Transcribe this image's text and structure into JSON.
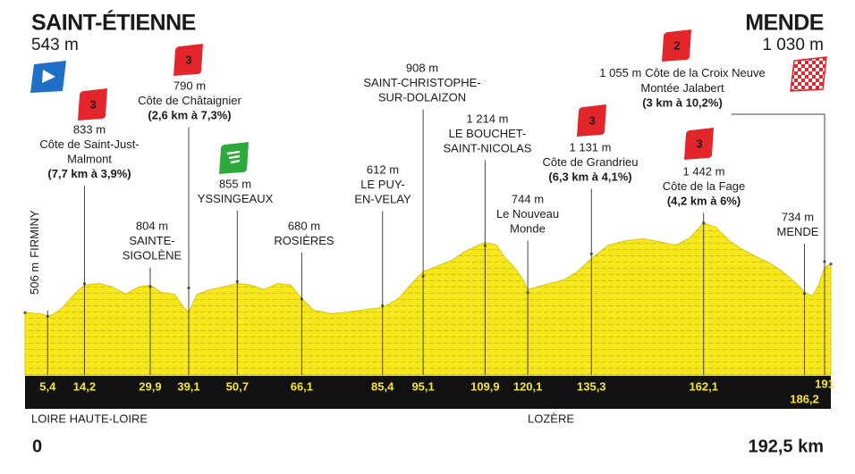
{
  "chart_data": {
    "type": "profile",
    "start": {
      "name": "SAINT-ÉTIENNE",
      "elevation": {
        "value": 543,
        "label": "543 m"
      },
      "km": {
        "value": 0,
        "label": "0"
      }
    },
    "finish": {
      "name": "MENDE",
      "elevation": {
        "value": 1030,
        "label": "1 030 m"
      },
      "km": {
        "value": 192.5,
        "label": "192,5 km"
      }
    },
    "regions": [
      "LOIRE HAUTE-LOIRE",
      "LOZÈRE"
    ],
    "xlim": [
      0,
      192.5
    ],
    "ylim": [
      -80,
      1600
    ],
    "profile": {
      "color": "#f7e81e",
      "x": [
        0,
        3.7,
        5.4,
        6.9,
        9.0,
        12.2,
        14.2,
        17.6,
        20.8,
        24.0,
        27.2,
        29.9,
        32.5,
        35.7,
        37.9,
        39.1,
        41.1,
        44.3,
        47.5,
        50.7,
        53.9,
        57.1,
        60.3,
        63.5,
        66.1,
        68.9,
        73.1,
        77.4,
        81.7,
        85.4,
        89.2,
        92.4,
        95.1,
        98.8,
        102.0,
        105.2,
        108.4,
        109.9,
        112.6,
        114.8,
        116.9,
        119.1,
        120.1,
        122.3,
        125.5,
        128.7,
        131.9,
        135.3,
        139.4,
        143.7,
        148.0,
        152.2,
        155.4,
        158.6,
        162.1,
        165.0,
        168.2,
        171.4,
        174.6,
        177.8,
        181.0,
        184.3,
        186.2,
        188.1,
        189.6,
        191.0,
        192.5
      ],
      "values": [
        543,
        533,
        506,
        530,
        595,
        747,
        819,
        836,
        801,
        729,
        801,
        819,
        747,
        729,
        595,
        551,
        729,
        774,
        801,
        836,
        819,
        774,
        836,
        819,
        685,
        569,
        533,
        551,
        577,
        595,
        685,
        836,
        953,
        1015,
        1069,
        1158,
        1220,
        1247,
        1220,
        1086,
        997,
        863,
        774,
        801,
        836,
        872,
        953,
        1086,
        1220,
        1265,
        1283,
        1247,
        1220,
        1283,
        1442,
        1399,
        1265,
        1176,
        1104,
        1042,
        953,
        836,
        747,
        711,
        819,
        997,
        1030
      ]
    },
    "waypoints": [
      {
        "km": {
          "value": 5.4,
          "label": "5,4"
        },
        "elevation": {
          "value": 506,
          "label": "506 m"
        },
        "name": [
          "FIRMINY"
        ]
      },
      {
        "km": {
          "value": 14.2,
          "label": "14,2"
        },
        "elevation": {
          "value": 833,
          "label": "833 m"
        },
        "name": [
          "Côte de Saint-Just-",
          "Malmont"
        ],
        "detail": "(7,7 km à 3,9%)",
        "climb": "3"
      },
      {
        "km": {
          "value": 29.9,
          "label": "29,9"
        },
        "elevation": {
          "value": 804,
          "label": "804 m"
        },
        "name": [
          "SAINTE-",
          "SIGOLÈNE"
        ]
      },
      {
        "km": {
          "value": 39.1,
          "label": "39,1"
        },
        "elevation": {
          "value": 790,
          "label": "790 m"
        },
        "name": [
          "Côte de Châtaignier"
        ],
        "detail": "(2,6 km à 7,3%)",
        "climb": "3"
      },
      {
        "km": {
          "value": 50.7,
          "label": "50,7"
        },
        "elevation": {
          "value": 855,
          "label": "855 m"
        },
        "name": [
          "YSSINGEAUX"
        ],
        "sprint": true
      },
      {
        "km": {
          "value": 66.1,
          "label": "66,1"
        },
        "elevation": {
          "value": 680,
          "label": "680 m"
        },
        "name": [
          "ROSIÈRES"
        ]
      },
      {
        "km": {
          "value": 85.4,
          "label": "85,4"
        },
        "elevation": {
          "value": 612,
          "label": "612 m"
        },
        "name": [
          "LE PUY-",
          "EN-VELAY"
        ]
      },
      {
        "km": {
          "value": 95.1,
          "label": "95,1"
        },
        "elevation": {
          "value": 908,
          "label": "908 m"
        },
        "name": [
          "SAINT-CHRISTOPHE-",
          "SUR-DOLAIZON"
        ]
      },
      {
        "km": {
          "value": 109.9,
          "label": "109,9"
        },
        "elevation": {
          "value": 1214,
          "label": "1 214 m"
        },
        "name": [
          "LE BOUCHET-",
          "SAINT-NICOLAS"
        ]
      },
      {
        "km": {
          "value": 120.1,
          "label": "120,1"
        },
        "elevation": {
          "value": 744,
          "label": "744 m"
        },
        "name": [
          "Le Nouveau",
          "Monde"
        ]
      },
      {
        "km": {
          "value": 135.3,
          "label": "135,3"
        },
        "elevation": {
          "value": 1131,
          "label": "1 131 m"
        },
        "name": [
          "Côte de Grandrieu"
        ],
        "detail": "(6,3 km à 4,1%)",
        "climb": "3"
      },
      {
        "km": {
          "value": 162.1,
          "label": "162,1"
        },
        "elevation": {
          "value": 1442,
          "label": "1 442 m"
        },
        "name": [
          "Côte de la Fage"
        ],
        "detail": "(4,2 km à 6%)",
        "climb": "3"
      },
      {
        "km": {
          "value": 186.2,
          "label": "186,2"
        },
        "elevation": {
          "value": 734,
          "label": "734 m"
        },
        "name": [
          "MENDE"
        ]
      },
      {
        "km": {
          "value": 191,
          "label": "191"
        },
        "elevation": {
          "value": 1055,
          "label": "1 055 m"
        },
        "name": [
          "Côte de la Croix Neuve",
          "Montée Jalabert"
        ],
        "detail": "(3 km à 10,2%)",
        "climb": "2"
      }
    ]
  }
}
